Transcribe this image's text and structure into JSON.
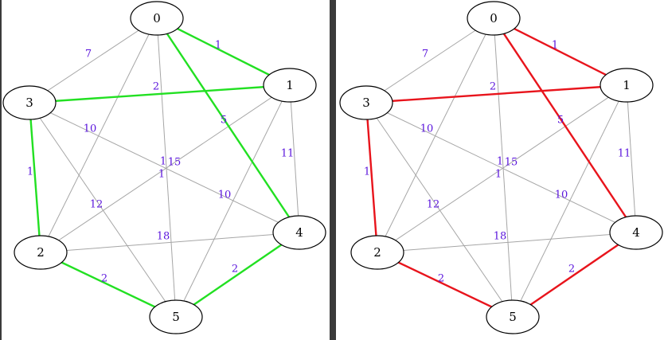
{
  "colors": {
    "edge_default": "#a6a6a6",
    "weight_label": "#5a14dc",
    "highlight_left": "#22e022",
    "highlight_right": "#e8141c",
    "node_fill": "#ffffff",
    "node_stroke": "#000000"
  },
  "graph": {
    "nodes": [
      {
        "id": "0",
        "label": "0"
      },
      {
        "id": "1",
        "label": "1"
      },
      {
        "id": "2",
        "label": "2"
      },
      {
        "id": "3",
        "label": "3"
      },
      {
        "id": "4",
        "label": "4"
      },
      {
        "id": "5",
        "label": "5"
      }
    ],
    "edges": [
      {
        "source": "0",
        "target": "3",
        "weight": "7"
      },
      {
        "source": "0",
        "target": "1",
        "weight": "1"
      },
      {
        "source": "0",
        "target": "2",
        "weight": "1"
      },
      {
        "source": "0",
        "target": "4",
        "weight": "5"
      },
      {
        "source": "0",
        "target": "5",
        "weight": "15"
      },
      {
        "source": "3",
        "target": "1",
        "weight": "2"
      },
      {
        "source": "3",
        "target": "2",
        "weight": "1"
      },
      {
        "source": "3",
        "target": "4",
        "weight": "10"
      },
      {
        "source": "3",
        "target": "5",
        "weight": "12"
      },
      {
        "source": "1",
        "target": "2",
        "weight": "1"
      },
      {
        "source": "1",
        "target": "4",
        "weight": "11"
      },
      {
        "source": "1",
        "target": "5",
        "weight": "10"
      },
      {
        "source": "2",
        "target": "4",
        "weight": "18"
      },
      {
        "source": "2",
        "target": "5",
        "weight": "2"
      },
      {
        "source": "4",
        "target": "5",
        "weight": "2"
      }
    ]
  },
  "panels": [
    {
      "name": "left",
      "highlight_color_key": "highlight_left",
      "highlighted_edges": [
        [
          "0",
          "1"
        ],
        [
          "0",
          "4"
        ],
        [
          "3",
          "1"
        ],
        [
          "3",
          "2"
        ],
        [
          "2",
          "5"
        ],
        [
          "4",
          "5"
        ]
      ]
    },
    {
      "name": "right",
      "highlight_color_key": "highlight_right",
      "highlighted_edges": [
        [
          "0",
          "1"
        ],
        [
          "0",
          "4"
        ],
        [
          "3",
          "1"
        ],
        [
          "3",
          "2"
        ],
        [
          "2",
          "5"
        ],
        [
          "4",
          "5"
        ]
      ]
    }
  ]
}
